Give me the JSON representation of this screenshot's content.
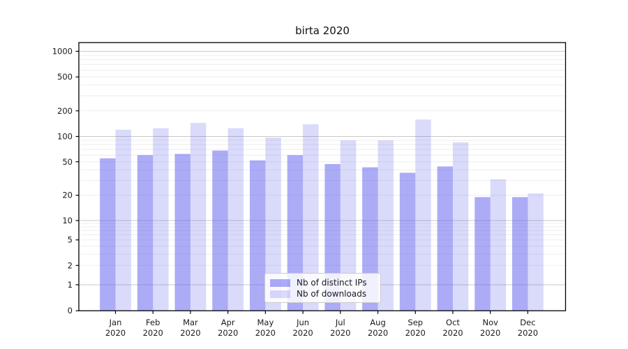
{
  "figure": {
    "title": "birta 2020"
  },
  "chart_data": {
    "type": "bar",
    "title": "birta 2020",
    "categories": [
      "Jan 2020",
      "Feb 2020",
      "Mar 2020",
      "Apr 2020",
      "May 2020",
      "Jun 2020",
      "Jul 2020",
      "Aug 2020",
      "Sep 2020",
      "Oct 2020",
      "Nov 2020",
      "Dec 2020"
    ],
    "x_tick_months": [
      "Jan",
      "Feb",
      "Mar",
      "Apr",
      "May",
      "Jun",
      "Jul",
      "Aug",
      "Sep",
      "Oct",
      "Nov",
      "Dec"
    ],
    "x_tick_year": "2020",
    "series": [
      {
        "name": "Nb of distinct IPs",
        "color": "rgba(102,102,238,0.55)",
        "values": [
          55,
          60,
          62,
          68,
          52,
          60,
          47,
          43,
          37,
          44,
          19,
          19
        ]
      },
      {
        "name": "Nb of downloads",
        "color": "rgba(102,102,238,0.24)",
        "values": [
          120,
          125,
          144,
          125,
          97,
          139,
          90,
          90,
          158,
          85,
          31,
          21
        ]
      }
    ],
    "yaxis": {
      "scale": "log-with-zero",
      "range": [
        0,
        1000
      ],
      "tick_values": [
        1000,
        500,
        200,
        100,
        50,
        20,
        10,
        5,
        2,
        1,
        0
      ],
      "tick_labels": [
        "1000",
        "500",
        "200",
        "100",
        "50",
        "20",
        "10",
        "5",
        "2",
        "1",
        "0"
      ],
      "major_grid_values": [
        1,
        10,
        100,
        1000
      ],
      "minor_grid_values": [
        2,
        3,
        4,
        5,
        6,
        7,
        8,
        9,
        20,
        30,
        40,
        50,
        60,
        70,
        80,
        90,
        200,
        300,
        400,
        500,
        600,
        700,
        800,
        900
      ]
    },
    "grid": true,
    "legend_position": "lower center",
    "colors": {
      "major_gridline": "#c8c8c8",
      "minor_gridline": "#ededed",
      "spine": "#000000",
      "text": "#1a1a1a",
      "background": "#ffffff"
    }
  }
}
